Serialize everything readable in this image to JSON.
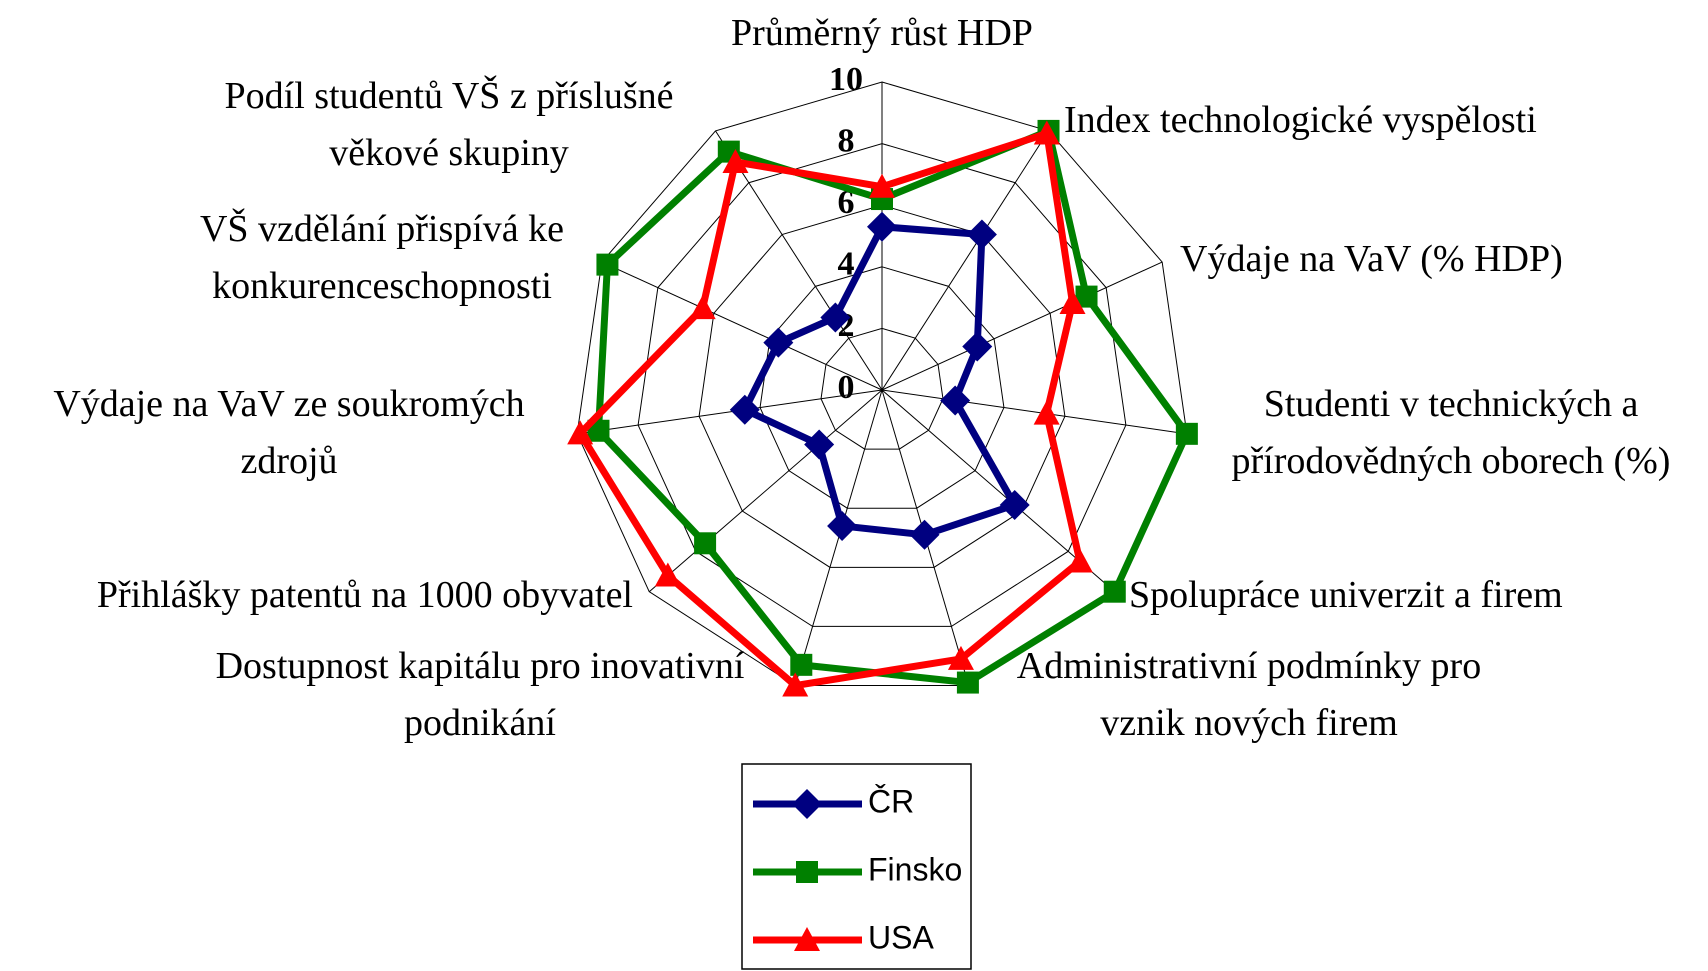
{
  "chart_data": {
    "type": "radar",
    "categories": [
      "Průměrný růst HDP",
      "Index technologické vyspělosti",
      "Výdaje na VaV (% HDP)",
      "Studenti v technických a přírodovědných oborech (%)",
      "Spolupráce univerzit a firem",
      "Administrativní podmínky pro vznik nových firem",
      "Dostupnost kapitálu pro inovativní podnikání",
      "Přihlášky patentů na 1000 obyvatel",
      "Výdaje na VaV ze soukromých zdrojů",
      "VŠ vzdělání přispívá ke konkurenceschopnosti",
      "Podíl studentů VŠ z příslušné věkové skupiny"
    ],
    "series": [
      {
        "name": "ČR",
        "color": "#000080",
        "marker": "diamond",
        "values": [
          5.3,
          6.0,
          3.4,
          2.4,
          5.7,
          4.9,
          4.6,
          2.7,
          4.5,
          3.7,
          2.8
        ]
      },
      {
        "name": "Finsko",
        "color": "#008000",
        "marker": "square",
        "values": [
          6.2,
          10,
          7.3,
          10,
          10,
          9.9,
          9.3,
          7.6,
          9.3,
          9.8,
          9.2
        ]
      },
      {
        "name": "USA",
        "color": "#ff0000",
        "marker": "triangle",
        "values": [
          6.6,
          9.9,
          6.8,
          5.4,
          8.5,
          9.1,
          10,
          9.2,
          9.9,
          6.4,
          8.8
        ]
      }
    ],
    "ylim": [
      0,
      10
    ],
    "yticks": [
      0,
      2,
      4,
      6,
      8,
      10
    ],
    "grid": true,
    "legend": "bottom"
  }
}
